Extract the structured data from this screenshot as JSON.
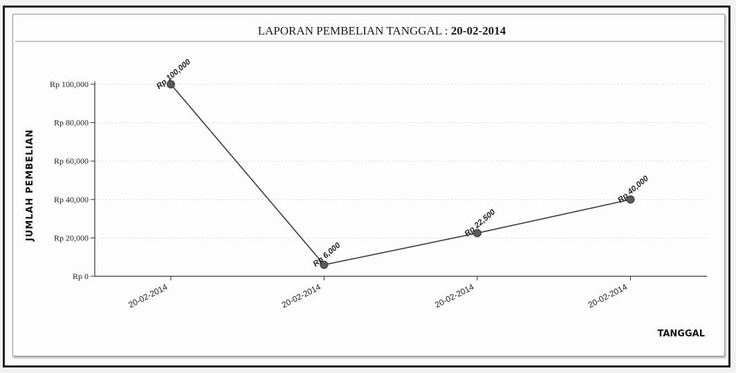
{
  "chart_data": {
    "type": "line",
    "title_prefix": "LAPORAN PEMBELIAN TANGGAL : ",
    "title_date": "20-02-2014",
    "xlabel": "TANGGAL",
    "ylabel": "JUMLAH PEMBELIAN",
    "categories": [
      "20-02-2014",
      "20-02-2014",
      "20-02-2014",
      "20-02-2014"
    ],
    "values": [
      100000,
      6000,
      22500,
      40000
    ],
    "data_labels": [
      "Rp 100,000",
      "Rp 6,000",
      "Rp 22,500",
      "Rp 40,000"
    ],
    "yticks": [
      0,
      20000,
      40000,
      60000,
      80000,
      100000
    ],
    "ytick_labels": [
      "Rp 0",
      "Rp 20,000",
      "Rp 40,000",
      "Rp 60,000",
      "Rp 80,000",
      "Rp 100,000"
    ],
    "ylim": [
      0,
      100000
    ],
    "grid": true,
    "line_color": "#3a3a3a",
    "marker_color": "#5a5a5a"
  }
}
